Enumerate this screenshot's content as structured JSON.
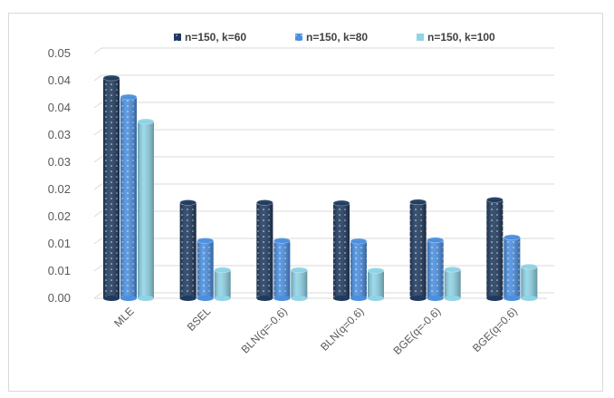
{
  "chart_data": {
    "type": "bar",
    "style": "3d-cylinder",
    "title": "",
    "xlabel": "",
    "ylabel": "",
    "categories": [
      "MLE",
      "BSEL",
      "BLN(q=-0.6)",
      "BLN(q=0.6)",
      "BGE(q=-0.6)",
      "BGE(q=0.6)"
    ],
    "y_tick_labels": [
      "0.00",
      "0.01",
      "0.01",
      "0.02",
      "0.02",
      "0.03",
      "0.03",
      "0.04",
      "0.04",
      "0.05"
    ],
    "ylim": [
      0,
      0.045
    ],
    "grid": true,
    "legend_position": "top",
    "series": [
      {
        "name": "n=150, k=60",
        "color": "#1f3a5f",
        "values": [
          0.0405,
          0.0176,
          0.0176,
          0.0175,
          0.0177,
          0.0181
        ]
      },
      {
        "name": "n=150, k=80",
        "color": "#4a8fe0",
        "values": [
          0.037,
          0.0106,
          0.0106,
          0.0105,
          0.0107,
          0.0112
        ]
      },
      {
        "name": "n=150, k=100",
        "color": "#8fd3e6",
        "values": [
          0.0325,
          0.0052,
          0.0052,
          0.0051,
          0.0053,
          0.0058
        ]
      }
    ]
  }
}
